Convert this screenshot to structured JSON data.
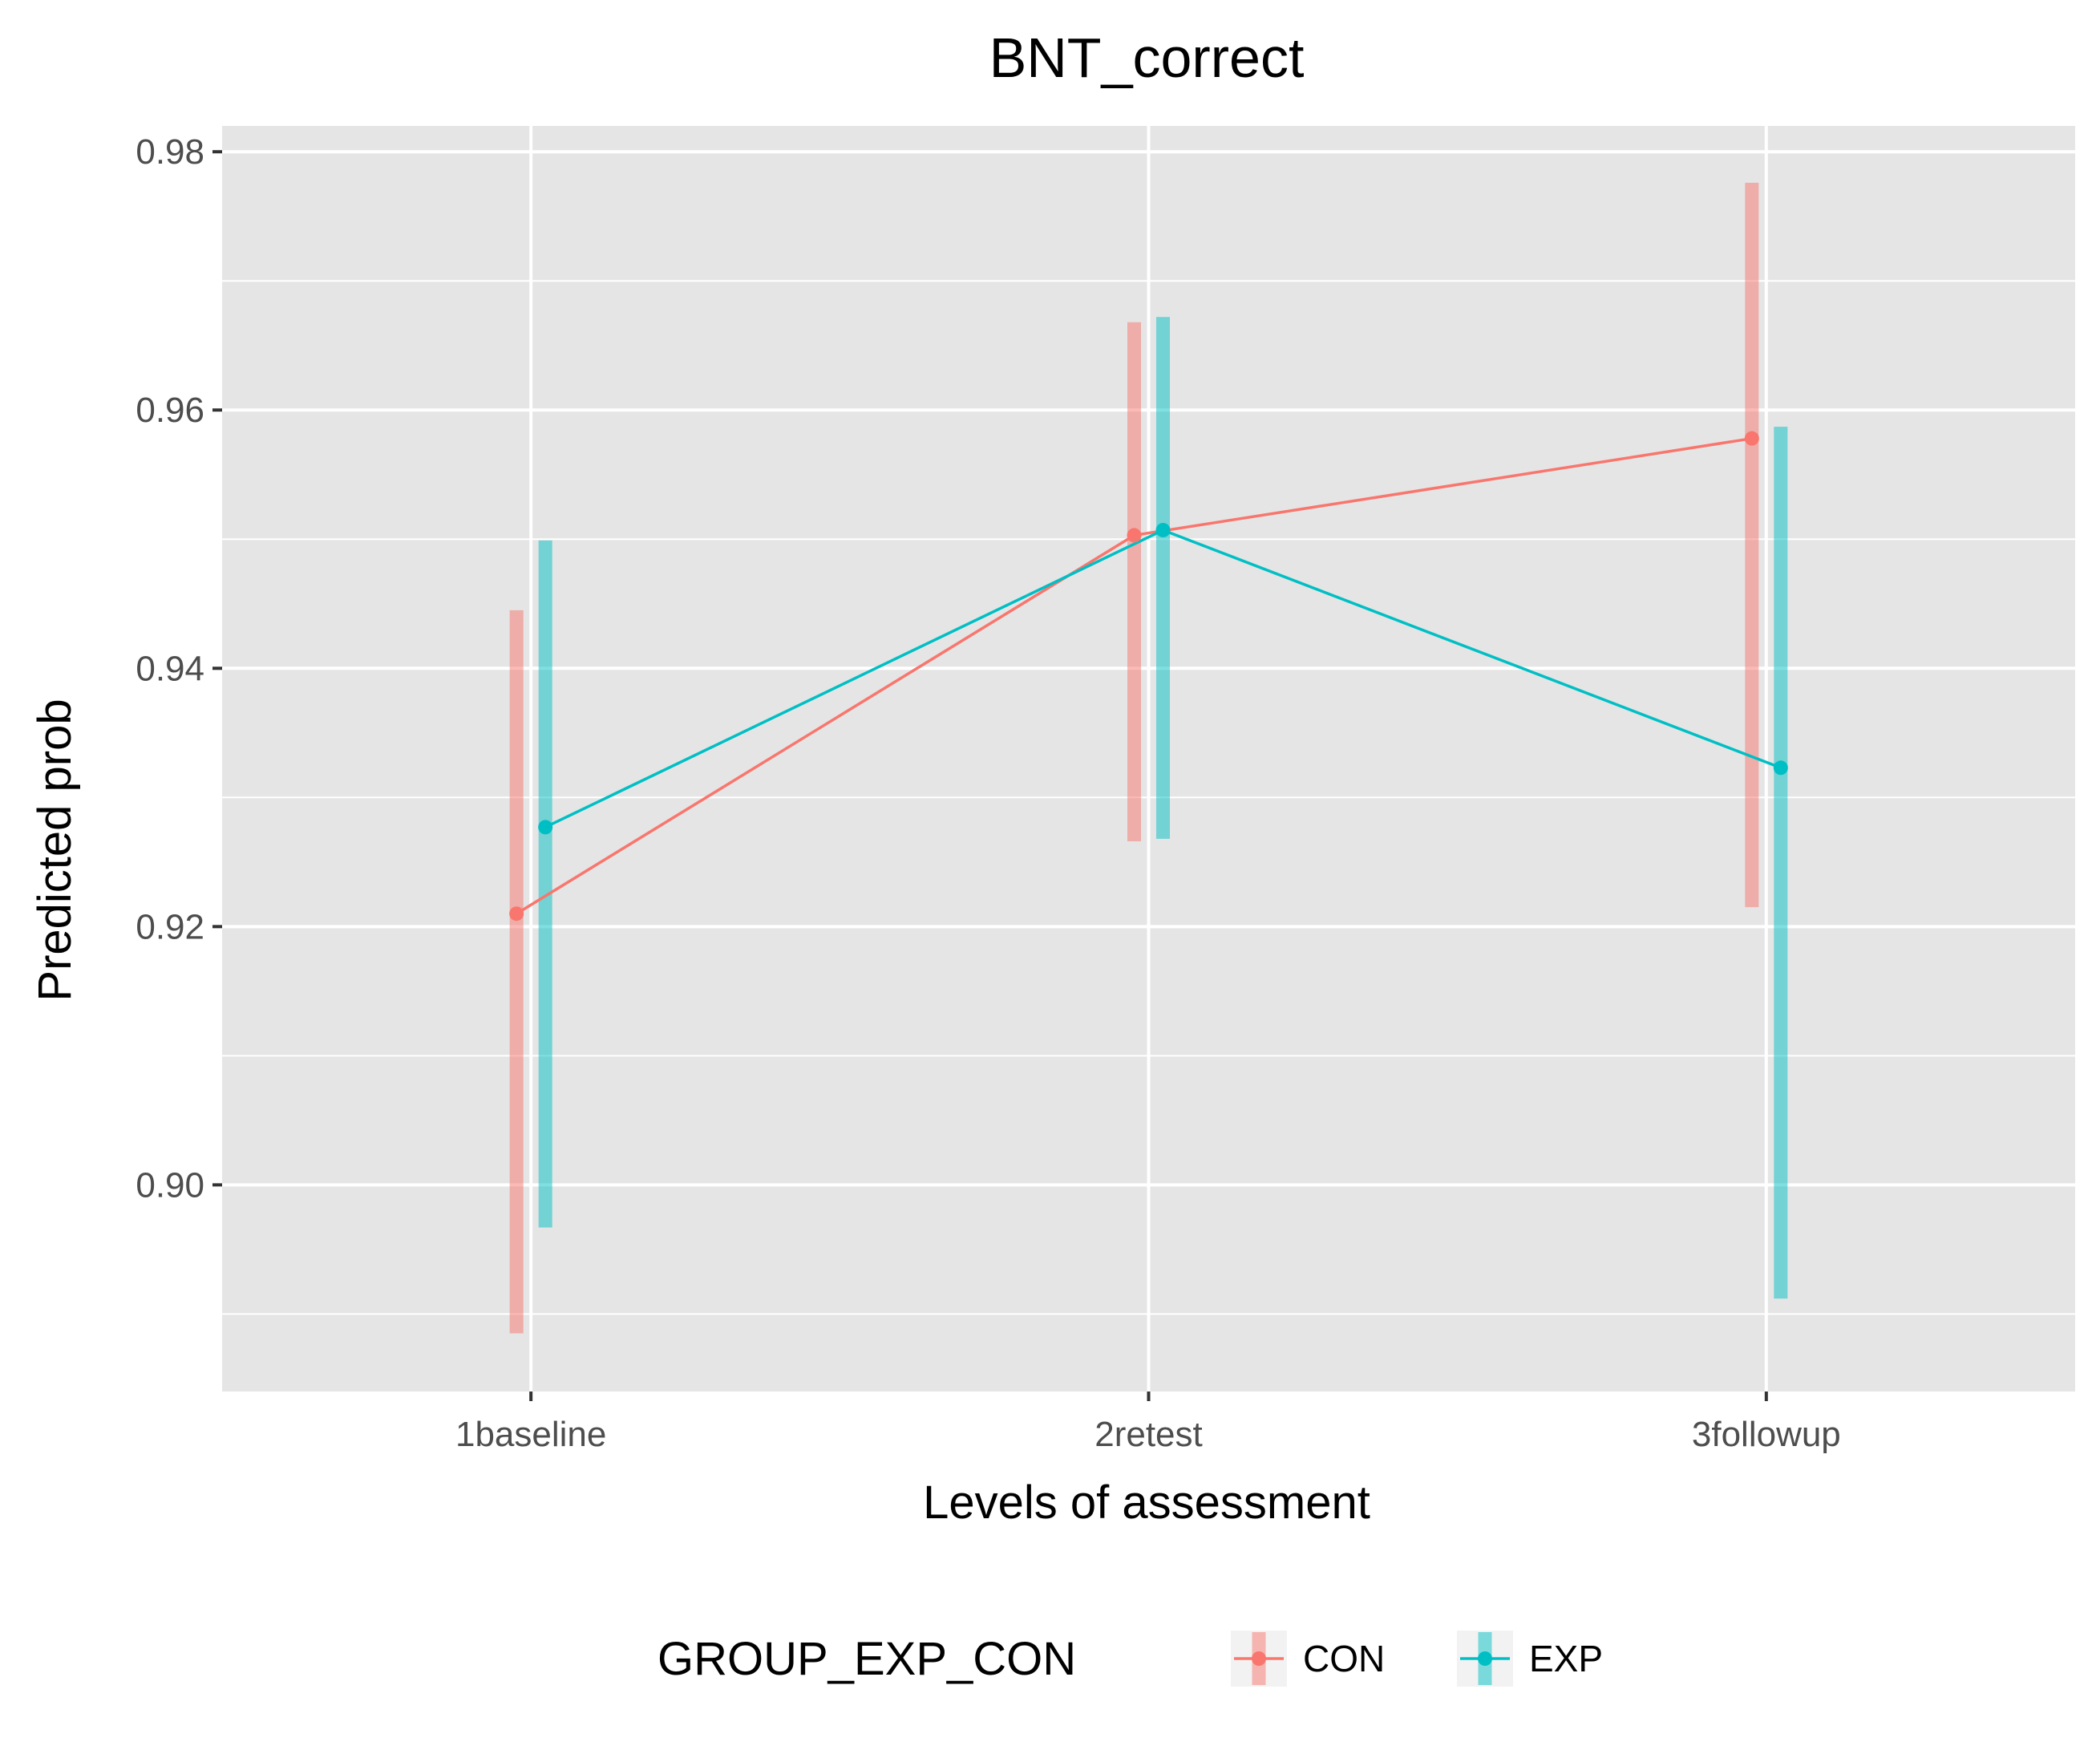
{
  "chart_data": {
    "type": "line",
    "title": "BNT_correct",
    "xlabel": "Levels of assessment",
    "ylabel": "Predicted prob",
    "categories": [
      "1baseline",
      "2retest",
      "3followup"
    ],
    "ylim": [
      0.884,
      0.982
    ],
    "yticks": [
      0.9,
      0.92,
      0.94,
      0.96,
      0.98
    ],
    "ytick_labels": [
      "0.90",
      "0.92",
      "0.94",
      "0.96",
      "0.98"
    ],
    "grid": true,
    "legend": {
      "title": "GROUP_EXP_CON",
      "position": "bottom"
    },
    "series": [
      {
        "name": "CON",
        "color": "#F8766D",
        "values": [
          0.921,
          0.9503,
          0.9578
        ],
        "lower": [
          0.8885,
          0.9266,
          0.9215
        ],
        "upper": [
          0.9445,
          0.9668,
          0.9776
        ]
      },
      {
        "name": "EXP",
        "color": "#00BFC4",
        "values": [
          0.9277,
          0.9507,
          0.9323
        ],
        "lower": [
          0.8967,
          0.9268,
          0.8912
        ],
        "upper": [
          0.9499,
          0.9672,
          0.9587
        ]
      }
    ]
  }
}
